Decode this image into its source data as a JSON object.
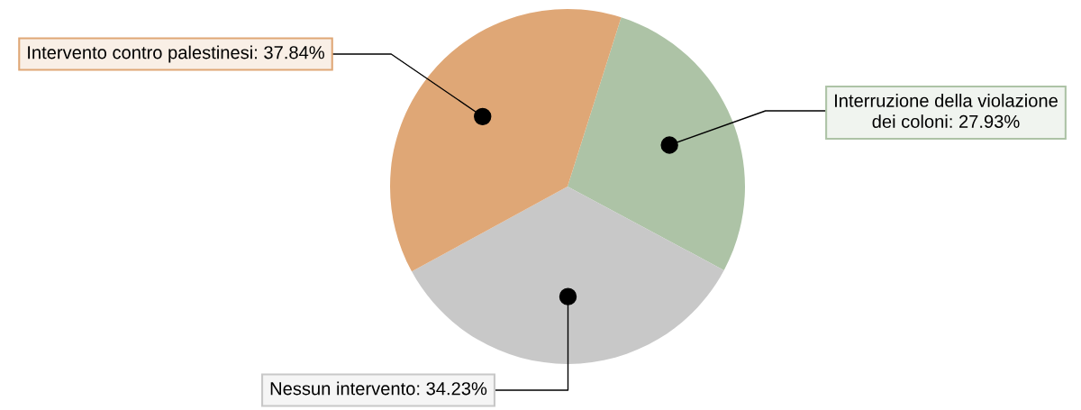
{
  "chart_data": {
    "type": "pie",
    "categories": [
      "Interruzione della violazione\ndei coloni",
      "Nessun intervento",
      "Intervento contro palestinesi"
    ],
    "values": [
      27.93,
      34.23,
      37.84
    ],
    "value_labels": [
      "27.93%",
      "34.23%",
      "37.84%"
    ],
    "colors": [
      "#adc3a6",
      "#c8c8c8",
      "#dfa776"
    ],
    "legend": false
  }
}
